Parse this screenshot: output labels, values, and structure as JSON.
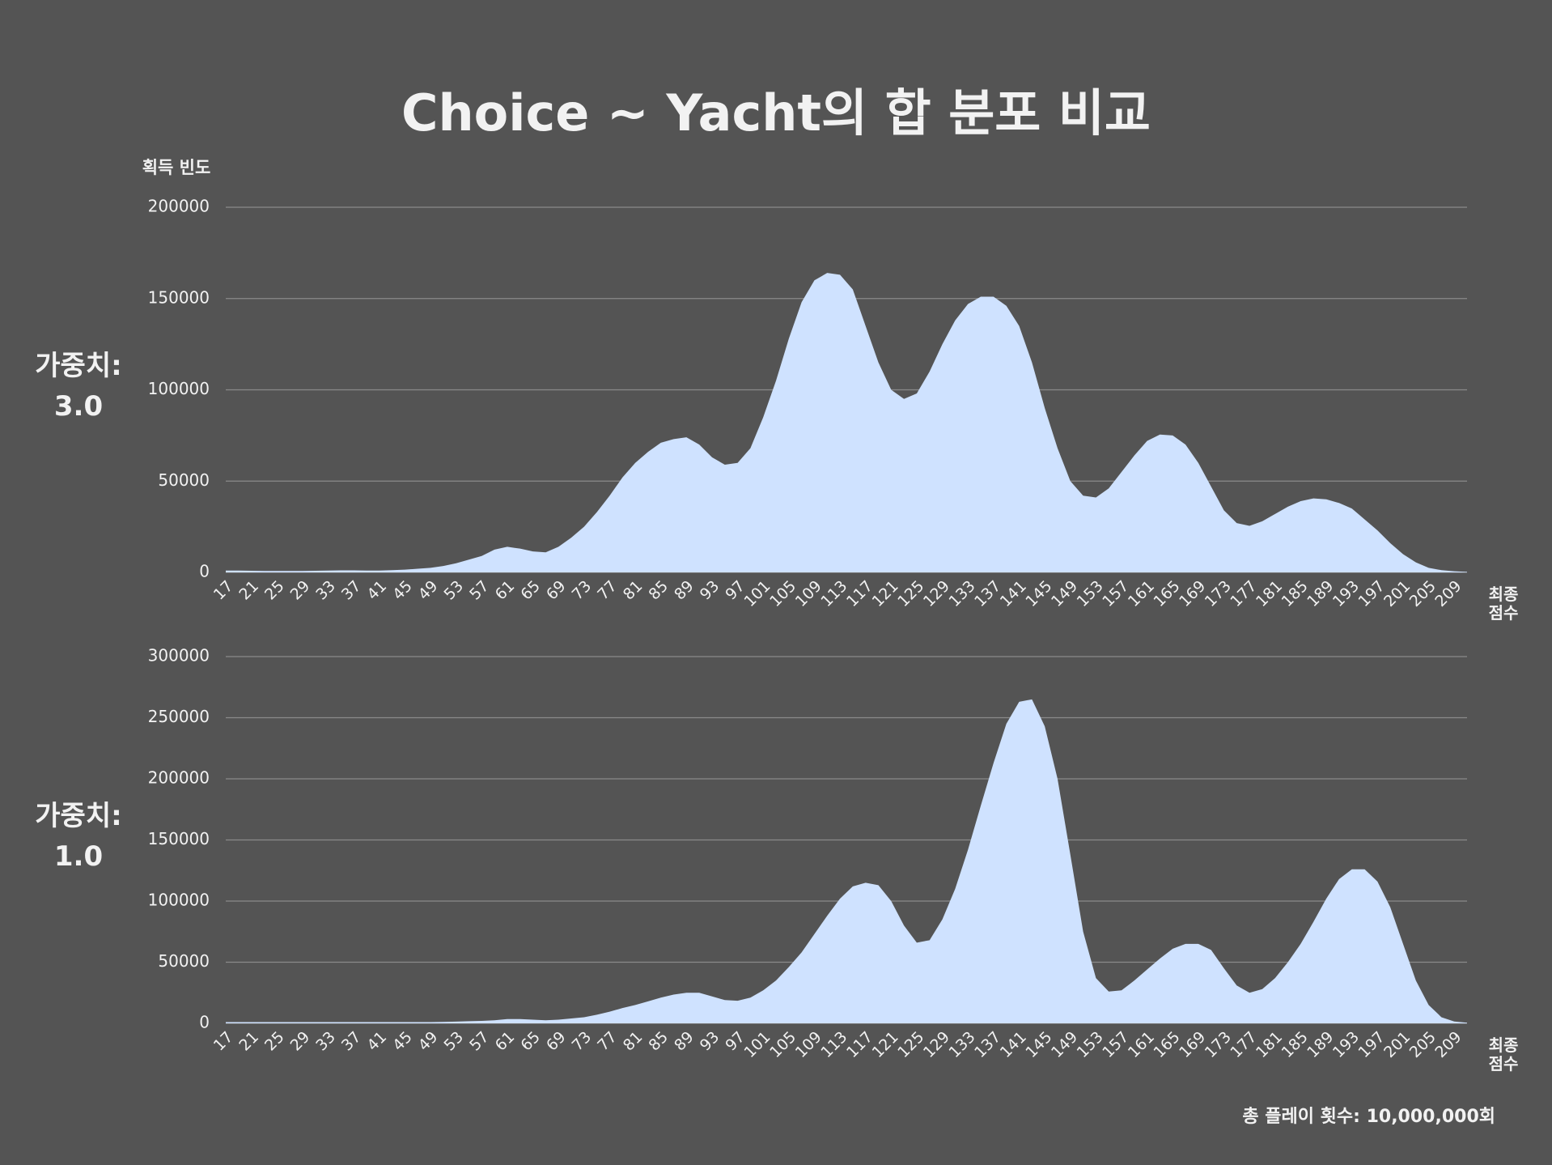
{
  "title": "Choice ~ Yacht의 합 분포 비교",
  "footer": "총 플레이 횟수: 10,000,000회",
  "chart_data": [
    {
      "type": "area",
      "side_label": "가중치: 3.0",
      "y_label": "획득 빈도",
      "x_label": "최종 점수",
      "x": [
        17,
        19,
        21,
        23,
        25,
        27,
        29,
        31,
        33,
        35,
        37,
        39,
        41,
        43,
        45,
        47,
        49,
        51,
        53,
        55,
        57,
        59,
        61,
        63,
        65,
        67,
        69,
        71,
        73,
        75,
        77,
        79,
        81,
        83,
        85,
        87,
        89,
        91,
        93,
        95,
        97,
        99,
        101,
        103,
        105,
        107,
        109,
        111,
        113,
        115,
        117,
        119,
        121,
        123,
        125,
        127,
        129,
        131,
        133,
        135,
        137,
        139,
        141,
        143,
        145,
        147,
        149,
        151,
        153,
        155,
        157,
        159,
        161,
        163,
        165,
        167,
        169,
        171,
        173,
        175,
        177,
        179,
        181,
        183,
        185,
        187,
        189,
        191,
        193,
        195,
        197,
        199,
        201,
        203,
        205,
        207,
        209,
        211
      ],
      "values": [
        1000,
        1000,
        900,
        800,
        800,
        800,
        800,
        900,
        1000,
        1100,
        1100,
        1000,
        1000,
        1200,
        1500,
        2000,
        2500,
        3500,
        5000,
        7000,
        9000,
        12500,
        14000,
        13000,
        11500,
        11000,
        14000,
        19000,
        25000,
        33000,
        42000,
        52000,
        60000,
        66000,
        71000,
        73000,
        74000,
        70000,
        63000,
        59000,
        60000,
        68000,
        85000,
        105000,
        128000,
        148000,
        160000,
        164000,
        163000,
        155000,
        135000,
        115000,
        100000,
        95000,
        98000,
        110000,
        125000,
        138000,
        147000,
        151000,
        151000,
        146000,
        135000,
        115000,
        90000,
        68000,
        50000,
        42000,
        41000,
        46000,
        55000,
        64000,
        72000,
        75500,
        75000,
        70000,
        60000,
        47000,
        34000,
        27000,
        25500,
        28000,
        32000,
        36000,
        39000,
        40500,
        40000,
        38000,
        35000,
        29000,
        23000,
        16000,
        10000,
        5500,
        2500,
        1200,
        600,
        300
      ],
      "color": "#cfe2ff",
      "xlim": [
        17,
        211
      ],
      "xticks": [
        17,
        21,
        25,
        29,
        33,
        37,
        41,
        45,
        49,
        53,
        57,
        61,
        65,
        69,
        73,
        77,
        81,
        85,
        89,
        93,
        97,
        101,
        105,
        109,
        113,
        117,
        121,
        125,
        129,
        133,
        137,
        141,
        145,
        149,
        153,
        157,
        161,
        165,
        169,
        173,
        177,
        181,
        185,
        189,
        193,
        197,
        201,
        205,
        209
      ],
      "ylim": [
        0,
        200000
      ],
      "yticks": [
        0,
        50000,
        100000,
        150000,
        200000
      ],
      "grid": true
    },
    {
      "type": "area",
      "side_label": "가중치: 1.0",
      "x_label": "최종 점수",
      "x": [
        17,
        19,
        21,
        23,
        25,
        27,
        29,
        31,
        33,
        35,
        37,
        39,
        41,
        43,
        45,
        47,
        49,
        51,
        53,
        55,
        57,
        59,
        61,
        63,
        65,
        67,
        69,
        71,
        73,
        75,
        77,
        79,
        81,
        83,
        85,
        87,
        89,
        91,
        93,
        95,
        97,
        99,
        101,
        103,
        105,
        107,
        109,
        111,
        113,
        115,
        117,
        119,
        121,
        123,
        125,
        127,
        129,
        131,
        133,
        135,
        137,
        139,
        141,
        143,
        145,
        147,
        149,
        151,
        153,
        155,
        157,
        159,
        161,
        163,
        165,
        167,
        169,
        171,
        173,
        175,
        177,
        179,
        181,
        183,
        185,
        187,
        189,
        191,
        193,
        195,
        197,
        199,
        201,
        203,
        205,
        207,
        209,
        211
      ],
      "values": [
        1000,
        1000,
        1000,
        1000,
        1000,
        1000,
        1000,
        1000,
        1000,
        1000,
        1000,
        1000,
        1000,
        1000,
        1000,
        1000,
        1000,
        1200,
        1400,
        1700,
        2000,
        2500,
        3500,
        3500,
        3000,
        2500,
        3000,
        4000,
        5000,
        7000,
        9500,
        12500,
        15000,
        18000,
        21000,
        23500,
        25000,
        25000,
        22000,
        19000,
        18500,
        21000,
        27000,
        35000,
        46000,
        58000,
        73000,
        88000,
        102000,
        112000,
        115000,
        113000,
        100000,
        80000,
        66000,
        68000,
        85000,
        110000,
        142000,
        178000,
        213000,
        245000,
        263000,
        265000,
        243000,
        200000,
        138000,
        75000,
        37000,
        26000,
        27000,
        35000,
        44000,
        53000,
        61000,
        65000,
        65000,
        60000,
        45000,
        31000,
        25000,
        28000,
        37000,
        50000,
        65000,
        83000,
        102000,
        118000,
        126000,
        126000,
        116000,
        95000,
        65000,
        35000,
        15000,
        5000,
        1500,
        500
      ],
      "color": "#cfe2ff",
      "xlim": [
        17,
        211
      ],
      "xticks": [
        17,
        21,
        25,
        29,
        33,
        37,
        41,
        45,
        49,
        53,
        57,
        61,
        65,
        69,
        73,
        77,
        81,
        85,
        89,
        93,
        97,
        101,
        105,
        109,
        113,
        117,
        121,
        125,
        129,
        133,
        137,
        141,
        145,
        149,
        153,
        157,
        161,
        165,
        169,
        173,
        177,
        181,
        185,
        189,
        193,
        197,
        201,
        205,
        209
      ],
      "ylim": [
        0,
        300000
      ],
      "yticks": [
        0,
        50000,
        100000,
        150000,
        200000,
        250000,
        300000
      ],
      "grid": true
    }
  ]
}
